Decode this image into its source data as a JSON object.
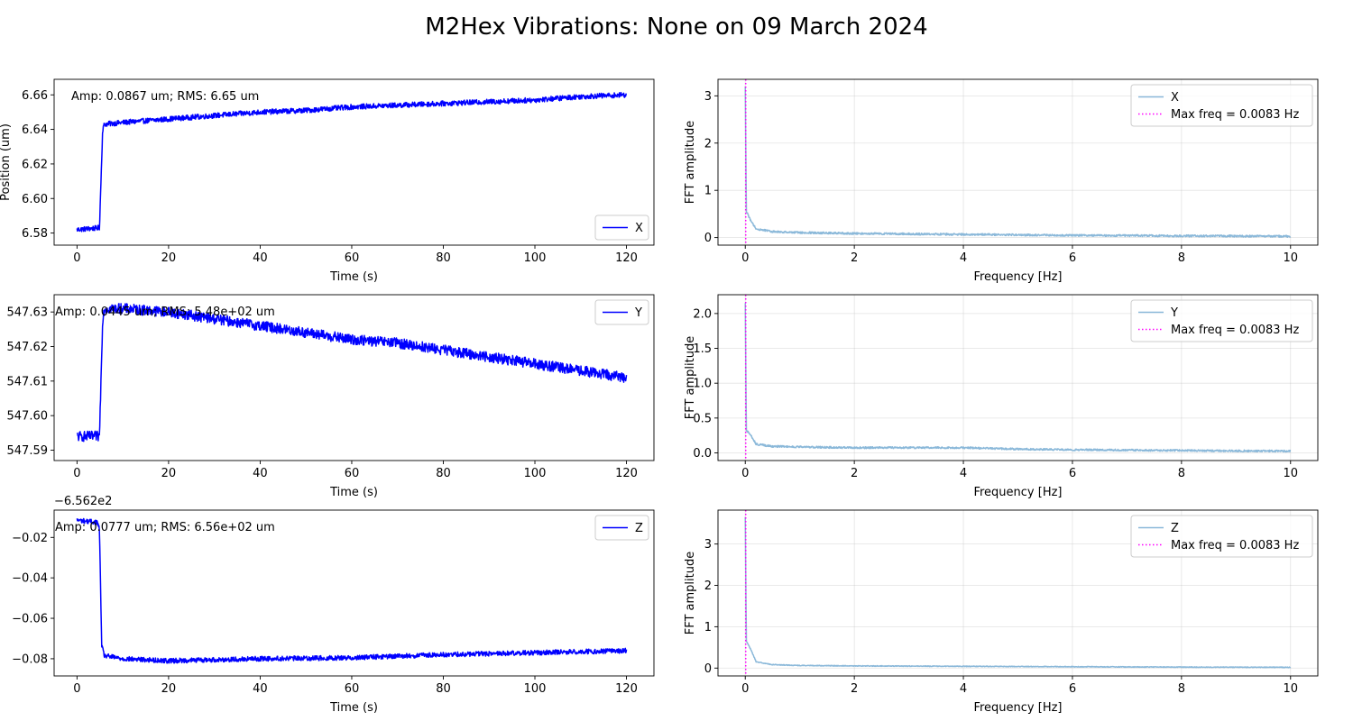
{
  "figure": {
    "title": "M2Hex Vibrations: None on 09 March 2024"
  },
  "chart_data": [
    {
      "id": "time-x",
      "type": "line",
      "xlabel": "Time (s)",
      "ylabel": "Position (um)",
      "xlim": [
        -5,
        126
      ],
      "ylim": [
        6.573,
        6.669
      ],
      "xticks": [
        0,
        20,
        40,
        60,
        80,
        100,
        120
      ],
      "xtick_labels": [
        "0",
        "20",
        "40",
        "60",
        "80",
        "100",
        "120"
      ],
      "yticks": [
        6.58,
        6.6,
        6.62,
        6.64,
        6.66
      ],
      "ytick_labels": [
        "6.58",
        "6.60",
        "6.62",
        "6.64",
        "6.66"
      ],
      "offset_text": "",
      "annotation": "Amp: 0.0867 um; RMS: 6.65 um",
      "legend_position": "lower-right",
      "series": [
        {
          "name": "X",
          "color": "#0000ff",
          "points": [
            [
              0,
              6.582
            ],
            [
              4.9,
              6.583
            ],
            [
              5.6,
              6.64
            ],
            [
              6,
              6.643
            ],
            [
              10,
              6.644
            ],
            [
              20,
              6.646
            ],
            [
              30,
              6.648
            ],
            [
              40,
              6.65
            ],
            [
              50,
              6.651
            ],
            [
              60,
              6.653
            ],
            [
              70,
              6.654
            ],
            [
              80,
              6.655
            ],
            [
              90,
              6.656
            ],
            [
              100,
              6.657
            ],
            [
              110,
              6.659
            ],
            [
              120,
              6.66
            ]
          ],
          "noise": 0.0015
        }
      ]
    },
    {
      "id": "fft-x",
      "type": "line",
      "xlabel": "Frequency [Hz]",
      "ylabel": "FFT amplitude",
      "xlim": [
        -0.5,
        10.5
      ],
      "ylim": [
        -0.16,
        3.35
      ],
      "grid": true,
      "xticks": [
        0,
        2,
        4,
        6,
        8,
        10
      ],
      "xtick_labels": [
        "0",
        "2",
        "4",
        "6",
        "8",
        "10"
      ],
      "yticks": [
        0,
        1,
        2,
        3
      ],
      "ytick_labels": [
        "0",
        "1",
        "2",
        "3"
      ],
      "legend_position": "upper-right",
      "series": [
        {
          "name": "X",
          "color": "#8ab8d9",
          "points": [
            [
              0,
              3.2
            ],
            [
              0.02,
              0.55
            ],
            [
              0.1,
              0.35
            ],
            [
              0.2,
              0.18
            ],
            [
              0.5,
              0.12
            ],
            [
              1,
              0.1
            ],
            [
              2,
              0.08
            ],
            [
              3,
              0.07
            ],
            [
              4,
              0.06
            ],
            [
              6,
              0.04
            ],
            [
              8,
              0.03
            ],
            [
              10,
              0.02
            ]
          ],
          "noise": 0.045
        }
      ],
      "vline": {
        "name": "Max freq = 0.0083 Hz",
        "x": 0.0083,
        "color": "#ff00ff"
      }
    },
    {
      "id": "time-y",
      "type": "line",
      "xlabel": "Time (s)",
      "ylabel": "",
      "xlim": [
        -5,
        126
      ],
      "ylim": [
        547.587,
        547.635
      ],
      "xticks": [
        0,
        20,
        40,
        60,
        80,
        100,
        120
      ],
      "xtick_labels": [
        "0",
        "20",
        "40",
        "60",
        "80",
        "100",
        "120"
      ],
      "yticks": [
        547.59,
        547.6,
        547.61,
        547.62,
        547.63
      ],
      "ytick_labels": [
        "547.59",
        "547.60",
        "547.61",
        "547.62",
        "547.63"
      ],
      "offset_text": "",
      "annotation": "Amp: 0.0445 um; RMS: 5.48e+02 um",
      "legend_position": "upper-right",
      "series": [
        {
          "name": "Y",
          "color": "#0000ff",
          "points": [
            [
              0,
              547.594
            ],
            [
              4.9,
              547.594
            ],
            [
              5.6,
              547.628
            ],
            [
              6,
              547.631
            ],
            [
              10,
              547.631
            ],
            [
              20,
              547.63
            ],
            [
              30,
              547.628
            ],
            [
              40,
              547.626
            ],
            [
              50,
              547.624
            ],
            [
              60,
              547.622
            ],
            [
              70,
              547.621
            ],
            [
              80,
              547.619
            ],
            [
              90,
              547.617
            ],
            [
              100,
              547.615
            ],
            [
              110,
              547.613
            ],
            [
              120,
              547.611
            ]
          ],
          "noise": 0.0015
        }
      ]
    },
    {
      "id": "fft-y",
      "type": "line",
      "xlabel": "Frequency [Hz]",
      "ylabel": "FFT amplitude",
      "xlim": [
        -0.5,
        10.5
      ],
      "ylim": [
        -0.11,
        2.27
      ],
      "grid": true,
      "xticks": [
        0,
        2,
        4,
        6,
        8,
        10
      ],
      "xtick_labels": [
        "0",
        "2",
        "4",
        "6",
        "8",
        "10"
      ],
      "yticks": [
        0,
        0.5,
        1.0,
        1.5,
        2.0
      ],
      "ytick_labels": [
        "0.0",
        "0.5",
        "1.0",
        "1.5",
        "2.0"
      ],
      "legend_position": "upper-right",
      "series": [
        {
          "name": "Y",
          "color": "#8ab8d9",
          "points": [
            [
              0,
              2.15
            ],
            [
              0.02,
              0.32
            ],
            [
              0.1,
              0.25
            ],
            [
              0.2,
              0.12
            ],
            [
              0.5,
              0.09
            ],
            [
              1,
              0.08
            ],
            [
              2,
              0.07
            ],
            [
              3,
              0.07
            ],
            [
              4,
              0.07
            ],
            [
              5,
              0.05
            ],
            [
              6,
              0.04
            ],
            [
              8,
              0.03
            ],
            [
              10,
              0.02
            ]
          ],
          "noise": 0.03
        }
      ],
      "vline": {
        "name": "Max freq = 0.0083 Hz",
        "x": 0.0083,
        "color": "#ff00ff"
      }
    },
    {
      "id": "time-z",
      "type": "line",
      "xlabel": "Time (s)",
      "ylabel": "",
      "xlim": [
        -5,
        126
      ],
      "ylim": [
        -0.0885,
        -0.0065
      ],
      "xticks": [
        0,
        20,
        40,
        60,
        80,
        100,
        120
      ],
      "xtick_labels": [
        "0",
        "20",
        "40",
        "60",
        "80",
        "100",
        "120"
      ],
      "yticks": [
        -0.02,
        -0.04,
        -0.06,
        -0.08
      ],
      "ytick_labels": [
        "−0.02",
        "−0.04",
        "−0.06",
        "−0.08"
      ],
      "offset_text": "−6.562e2",
      "annotation": "Amp: 0.0777 um; RMS: 6.56e+02 um",
      "legend_position": "upper-right",
      "series": [
        {
          "name": "Z",
          "color": "#0000ff",
          "points": [
            [
              0,
              -0.0115
            ],
            [
              4.4,
              -0.0125
            ],
            [
              4.9,
              -0.016
            ],
            [
              5.4,
              -0.074
            ],
            [
              6,
              -0.0785
            ],
            [
              10,
              -0.08
            ],
            [
              20,
              -0.081
            ],
            [
              40,
              -0.08
            ],
            [
              60,
              -0.0795
            ],
            [
              80,
              -0.078
            ],
            [
              100,
              -0.077
            ],
            [
              120,
              -0.076
            ]
          ],
          "noise": 0.0012
        }
      ]
    },
    {
      "id": "fft-z",
      "type": "line",
      "xlabel": "Frequency [Hz]",
      "ylabel": "FFT amplitude",
      "xlim": [
        -0.5,
        10.5
      ],
      "ylim": [
        -0.19,
        3.82
      ],
      "grid": true,
      "xticks": [
        0,
        2,
        4,
        6,
        8,
        10
      ],
      "xtick_labels": [
        "0",
        "2",
        "4",
        "6",
        "8",
        "10"
      ],
      "yticks": [
        0,
        1,
        2,
        3
      ],
      "ytick_labels": [
        "0",
        "1",
        "2",
        "3"
      ],
      "legend_position": "upper-right",
      "series": [
        {
          "name": "Z",
          "color": "#8ab8d9",
          "points": [
            [
              0,
              3.65
            ],
            [
              0.02,
              0.65
            ],
            [
              0.1,
              0.45
            ],
            [
              0.2,
              0.15
            ],
            [
              0.5,
              0.08
            ],
            [
              1,
              0.06
            ],
            [
              2,
              0.05
            ],
            [
              4,
              0.04
            ],
            [
              6,
              0.03
            ],
            [
              8,
              0.02
            ],
            [
              10,
              0.015
            ]
          ],
          "noise": 0.02
        }
      ],
      "vline": {
        "name": "Max freq = 0.0083 Hz",
        "x": 0.0083,
        "color": "#ff00ff"
      }
    }
  ]
}
